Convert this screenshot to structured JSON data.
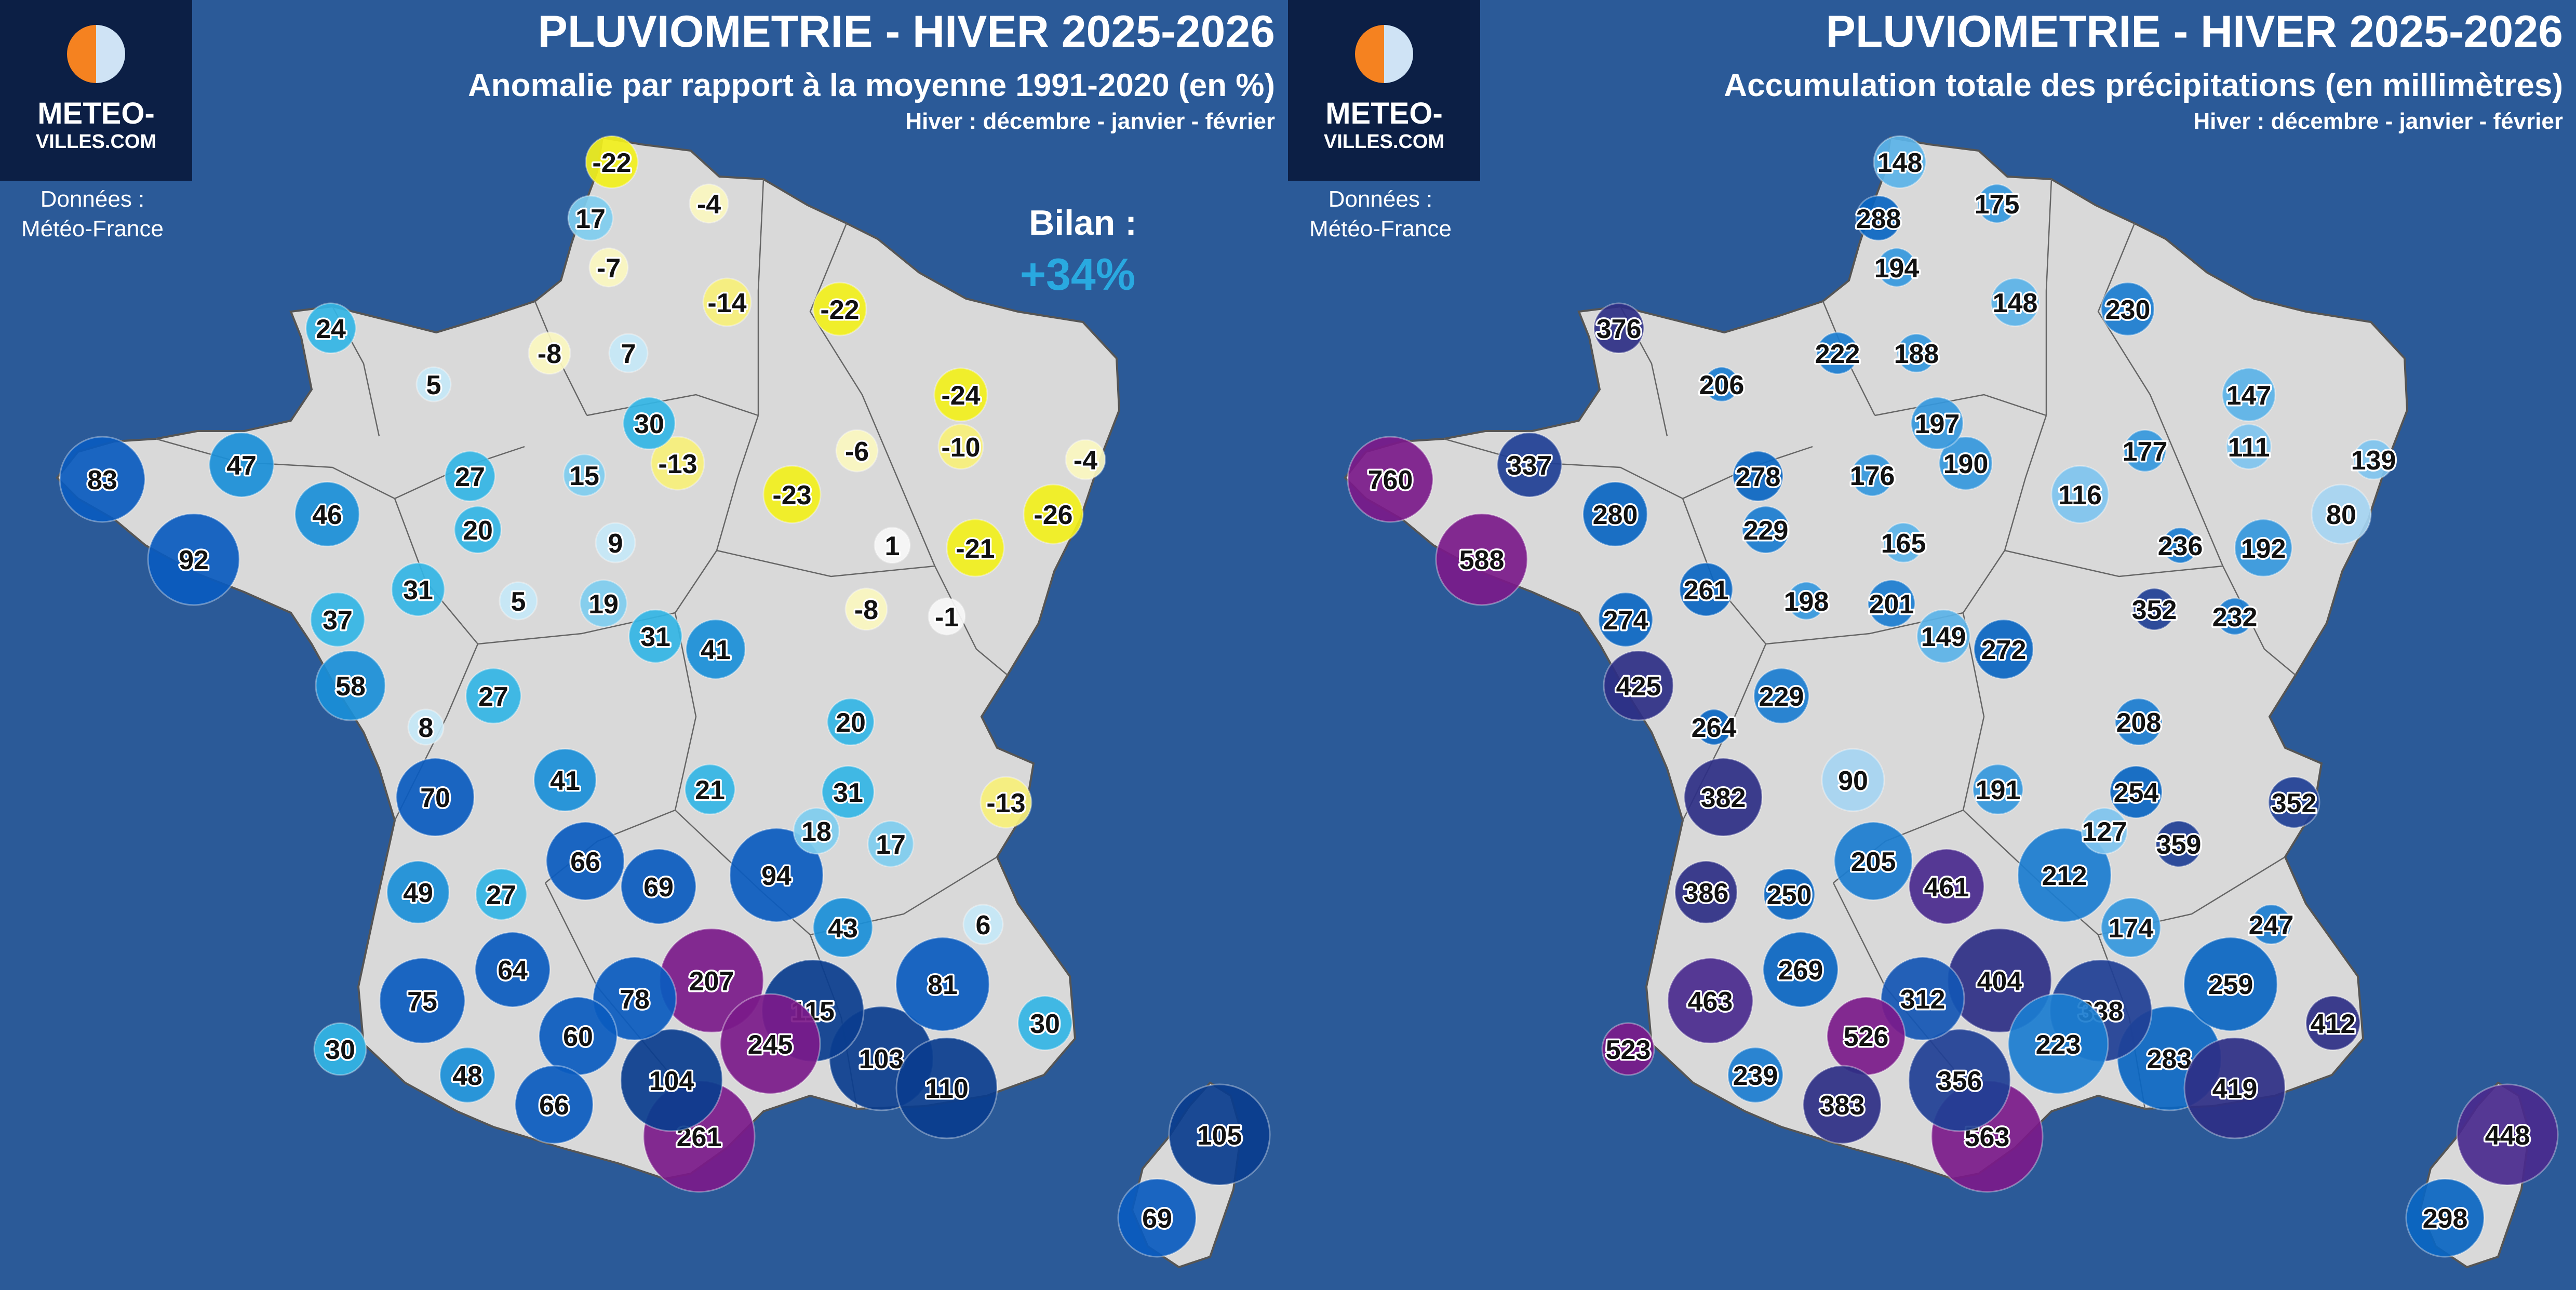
{
  "panels": [
    {
      "title": "PLUVIOMETRIE - HIVER 2025-2026",
      "subtitle": "Anomalie par rapport à la moyenne 1991-2020 (en %)",
      "season_note": "Hiver : décembre - janvier - février",
      "logo": {
        "line1": "METEO-",
        "line2": "VILLES.COM",
        "icon": "half-sun-half-moon-icon"
      },
      "source_line1": "Données :",
      "source_line2": "Météo-France",
      "summary_label": "Bilan :",
      "summary_value": "+34%",
      "summary_color": "#29a9e0",
      "values": [
        -22,
        17,
        -4,
        -7,
        -14,
        -22,
        24,
        -8,
        7,
        5,
        -24,
        30,
        -6,
        -10,
        -4,
        83,
        47,
        27,
        15,
        -13,
        -23,
        -26,
        46,
        20,
        9,
        1,
        -21,
        92,
        31,
        5,
        19,
        31,
        41,
        -8,
        -1,
        37,
        58,
        27,
        8,
        20,
        70,
        41,
        21,
        31,
        -13,
        18,
        17,
        66,
        49,
        27,
        69,
        94,
        6,
        43,
        64,
        75,
        78,
        207,
        115,
        81,
        60,
        245,
        103,
        30,
        30,
        48,
        104,
        66,
        110,
        261,
        105,
        69
      ]
    },
    {
      "title": "PLUVIOMETRIE - HIVER 2025-2026",
      "subtitle": "Accumulation totale des précipitations (en millimètres)",
      "season_note": "Hiver : décembre - janvier - février",
      "logo": {
        "line1": "METEO-",
        "line2": "VILLES.COM",
        "icon": "half-sun-half-moon-icon"
      },
      "source_line1": "Données :",
      "source_line2": "Météo-France",
      "values": [
        148,
        288,
        175,
        194,
        148,
        230,
        376,
        222,
        188,
        206,
        147,
        197,
        177,
        111,
        139,
        760,
        337,
        278,
        176,
        190,
        116,
        80,
        280,
        229,
        165,
        236,
        192,
        588,
        261,
        198,
        201,
        149,
        272,
        352,
        232,
        274,
        425,
        229,
        264,
        208,
        382,
        90,
        191,
        254,
        352,
        127,
        359,
        205,
        386,
        250,
        461,
        212,
        247,
        174,
        269,
        463,
        312,
        404,
        338,
        259,
        526,
        223,
        283,
        523,
        412,
        239,
        356,
        383,
        419,
        563,
        448,
        298
      ]
    }
  ],
  "colors": {
    "background": "#2b5a98",
    "land": "#d9d9d9",
    "logo_box": "#0c1f45",
    "sun": "#f58220",
    "moon": "#cfe3f5"
  }
}
